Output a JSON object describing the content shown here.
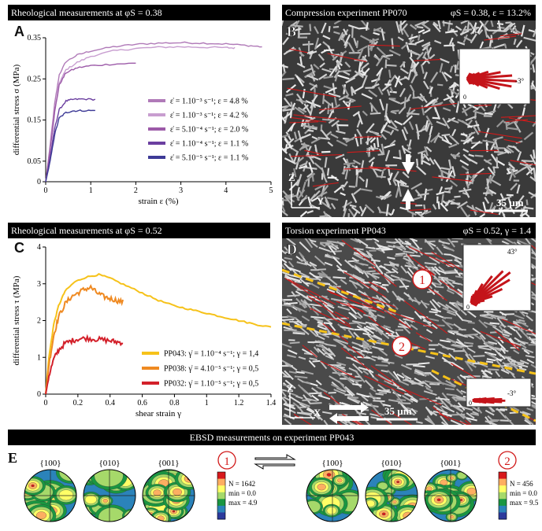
{
  "headers": {
    "a": "Rheological measurements at φS = 0.38",
    "b_left": "Compression experiment PP070",
    "b_right": "φS = 0.38, ε = 13.2%",
    "c": "Rheological measurements at φS = 0.52",
    "d_left": "Torsion experiment PP043",
    "d_right": "φS = 0.52, γ = 1.4",
    "e": "EBSD measurements on experiment PP043"
  },
  "panel_labels": {
    "a": "A",
    "b": "B",
    "c": "C",
    "d": "D",
    "e": "E"
  },
  "micro_b": {
    "scale": "35 µm",
    "axis_z": "Z",
    "axis_y": "Y",
    "rose_angle": "-3°",
    "rose_zero": "0"
  },
  "micro_d": {
    "scale": "35 µm",
    "axis_z": "Z",
    "axis_x": "X",
    "zone1": "1",
    "zone2": "2",
    "rose1_angle": "43°",
    "rose1_zero": "0",
    "rose2_angle": "-3°",
    "rose2_zero": "0"
  },
  "chart_data": [
    {
      "type": "line",
      "panel": "A",
      "xlabel": "strain ε (%)",
      "ylabel": "differential stress σ (MPa)",
      "xlim": [
        0,
        5
      ],
      "ylim": [
        0,
        0.35
      ],
      "xticks": [
        0,
        1,
        2,
        3,
        4,
        5
      ],
      "yticks": [
        0,
        0.05,
        0.15,
        0.25,
        0.35
      ],
      "ytick_labels": [
        "0",
        "0.05",
        "0.15",
        "0.25",
        "0.35"
      ],
      "series": [
        {
          "name": "ε̇ = 1.10⁻³ s⁻¹; ε = 4.8 %",
          "color": "#b07ab8",
          "x": [
            0,
            0.1,
            0.2,
            0.3,
            0.45,
            0.7,
            1.0,
            1.5,
            2.0,
            2.5,
            3.0,
            3.5,
            4.0,
            4.5,
            4.8
          ],
          "y": [
            0,
            0.09,
            0.19,
            0.26,
            0.292,
            0.308,
            0.318,
            0.328,
            0.334,
            0.337,
            0.338,
            0.337,
            0.335,
            0.331,
            0.328
          ]
        },
        {
          "name": "ε̇ = 1.10⁻³ s⁻¹; ε = 4.2 %",
          "color": "#c89ed0",
          "x": [
            0,
            0.1,
            0.2,
            0.3,
            0.45,
            0.7,
            1.0,
            1.5,
            2.0,
            2.5,
            3.0,
            3.5,
            4.0,
            4.2
          ],
          "y": [
            0,
            0.08,
            0.17,
            0.24,
            0.272,
            0.29,
            0.305,
            0.318,
            0.324,
            0.327,
            0.328,
            0.327,
            0.326,
            0.325
          ]
        },
        {
          "name": "ε̇ = 5.10⁻⁴ s⁻¹; ε = 2.0 %",
          "color": "#9c5aa8",
          "x": [
            0,
            0.1,
            0.2,
            0.3,
            0.45,
            0.7,
            1.0,
            1.5,
            2.0
          ],
          "y": [
            0,
            0.08,
            0.17,
            0.235,
            0.265,
            0.277,
            0.282,
            0.286,
            0.288
          ]
        },
        {
          "name": "ε̇ = 1.10⁻⁴ s⁻¹; ε = 1.1 %",
          "color": "#6b3fa0",
          "x": [
            0,
            0.1,
            0.2,
            0.3,
            0.45,
            0.6,
            0.8,
            1.1
          ],
          "y": [
            0,
            0.06,
            0.13,
            0.175,
            0.196,
            0.2,
            0.201,
            0.2
          ]
        },
        {
          "name": "ε̇ = 5.10⁻⁵ s⁻¹; ε = 1.1 %",
          "color": "#3d3a96",
          "x": [
            0,
            0.1,
            0.2,
            0.3,
            0.45,
            0.6,
            0.8,
            1.1
          ],
          "y": [
            0,
            0.05,
            0.115,
            0.155,
            0.168,
            0.172,
            0.173,
            0.173
          ]
        }
      ]
    },
    {
      "type": "line",
      "panel": "C",
      "xlabel": "shear strain γ",
      "ylabel": "differential stress τ (MPa)",
      "xlim": [
        0,
        1.4
      ],
      "ylim": [
        0,
        4
      ],
      "xticks": [
        0,
        0.2,
        0.4,
        0.6,
        0.8,
        1.0,
        1.2,
        1.4
      ],
      "xtick_labels": [
        "0",
        "0.2",
        "0.4",
        "0.6",
        "0.8",
        "1",
        "1.2",
        "1.4"
      ],
      "yticks": [
        0,
        1,
        2,
        3,
        4
      ],
      "series": [
        {
          "name": "PP043: γ̇ = 1.10⁻⁴ s⁻¹; γ = 1,4",
          "color": "#f6c21a",
          "x": [
            0,
            0.02,
            0.05,
            0.08,
            0.12,
            0.18,
            0.25,
            0.33,
            0.4,
            0.5,
            0.6,
            0.7,
            0.8,
            0.9,
            1.0,
            1.1,
            1.2,
            1.3,
            1.4
          ],
          "y": [
            0,
            1.0,
            1.9,
            2.4,
            2.8,
            3.05,
            3.18,
            3.25,
            3.15,
            2.95,
            2.75,
            2.55,
            2.4,
            2.3,
            2.2,
            2.1,
            2.0,
            1.9,
            1.82
          ]
        },
        {
          "name": "PP038: γ̇ = 4.10⁻⁵ s⁻¹; γ = 0,5",
          "color": "#ef8a22",
          "x": [
            0,
            0.02,
            0.05,
            0.08,
            0.12,
            0.16,
            0.2,
            0.24,
            0.28,
            0.32,
            0.36,
            0.4,
            0.44,
            0.48
          ],
          "y": [
            0,
            0.8,
            1.6,
            2.1,
            2.45,
            2.65,
            2.75,
            2.85,
            2.9,
            2.75,
            2.65,
            2.6,
            2.55,
            2.5
          ]
        },
        {
          "name": "PP032: γ̇ = 1.10⁻⁵ s⁻¹; γ = 0,5",
          "color": "#d3202a",
          "x": [
            0,
            0.02,
            0.05,
            0.08,
            0.12,
            0.16,
            0.2,
            0.25,
            0.3,
            0.35,
            0.4,
            0.44,
            0.48
          ],
          "y": [
            0,
            0.5,
            0.95,
            1.2,
            1.38,
            1.45,
            1.5,
            1.52,
            1.5,
            1.48,
            1.45,
            1.42,
            1.4
          ]
        }
      ]
    }
  ],
  "ebsd": {
    "zone1_label": "1",
    "zone2_label": "2",
    "titles_left": [
      "{100}",
      "{010}",
      "{001}"
    ],
    "titles_right": [
      "{100}",
      "{010}",
      "{001}"
    ],
    "stats_left": {
      "n": "N = 1642",
      "min": "min = 0.0",
      "max": "max = 4.9"
    },
    "stats_right": {
      "n": "N = 456",
      "min": "min = 0.0",
      "max": "max = 9.5"
    },
    "colorbar": [
      "#d7191c",
      "#fdae61",
      "#ffff66",
      "#a6d96a",
      "#1a9641",
      "#2b83ba",
      "#2c3a9c"
    ]
  }
}
